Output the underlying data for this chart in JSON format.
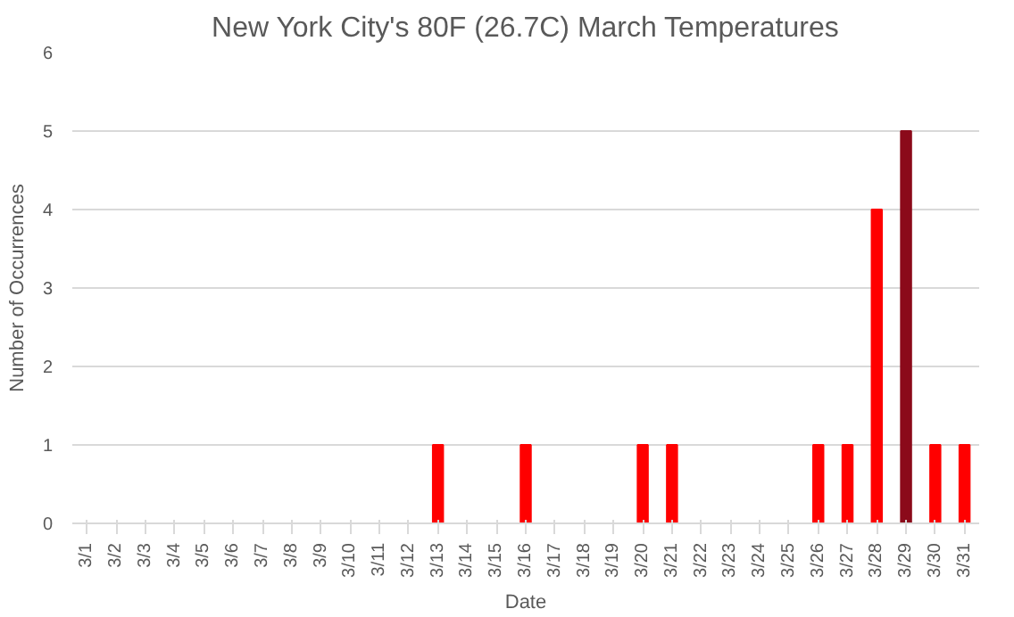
{
  "chart_data": {
    "type": "bar",
    "title": "New York City's 80F (26.7C) March Temperatures",
    "xlabel": "Date",
    "ylabel": "Number of Occurrences",
    "categories": [
      "3/1",
      "3/2",
      "3/3",
      "3/4",
      "3/5",
      "3/6",
      "3/7",
      "3/8",
      "3/9",
      "3/10",
      "3/11",
      "3/12",
      "3/13",
      "3/14",
      "3/15",
      "3/16",
      "3/17",
      "3/18",
      "3/19",
      "3/20",
      "3/21",
      "3/22",
      "3/23",
      "3/24",
      "3/25",
      "3/26",
      "3/27",
      "3/28",
      "3/29",
      "3/30",
      "3/31"
    ],
    "values": [
      0,
      0,
      0,
      0,
      0,
      0,
      0,
      0,
      0,
      0,
      0,
      0,
      1,
      0,
      0,
      1,
      0,
      0,
      0,
      1,
      1,
      0,
      0,
      0,
      0,
      1,
      1,
      4,
      5,
      1,
      1
    ],
    "colors": [
      "#ff0000",
      "#ff0000",
      "#ff0000",
      "#ff0000",
      "#ff0000",
      "#ff0000",
      "#ff0000",
      "#ff0000",
      "#ff0000",
      "#ff0000",
      "#ff0000",
      "#ff0000",
      "#ff0000",
      "#ff0000",
      "#ff0000",
      "#ff0000",
      "#ff0000",
      "#ff0000",
      "#ff0000",
      "#ff0000",
      "#ff0000",
      "#ff0000",
      "#ff0000",
      "#ff0000",
      "#ff0000",
      "#ff0000",
      "#ff0000",
      "#ff0000",
      "#8b0a1a",
      "#ff0000",
      "#ff0000"
    ],
    "ylim": [
      0,
      6
    ],
    "yticks": [
      0,
      1,
      2,
      3,
      4,
      5,
      6
    ],
    "grid": "y"
  }
}
